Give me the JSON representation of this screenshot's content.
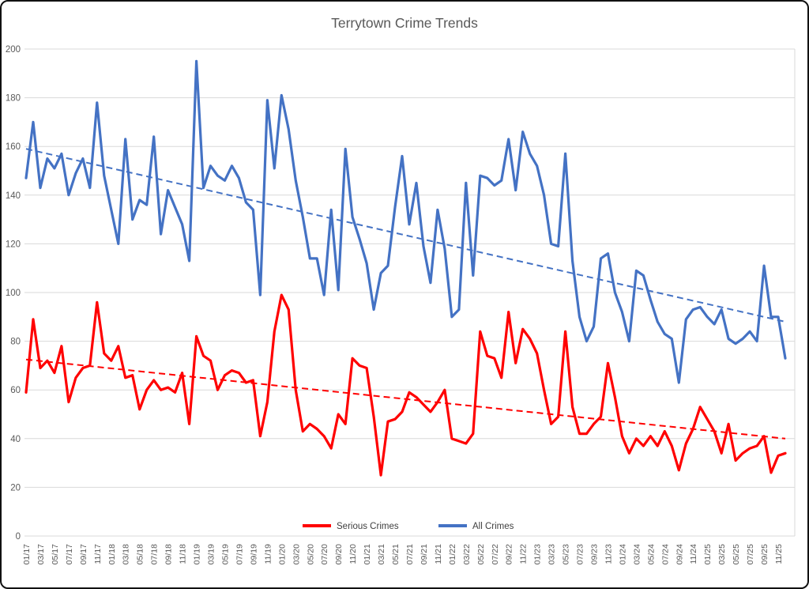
{
  "chart_data": {
    "type": "line",
    "title": "Terrytown Crime Trends",
    "title_color": "#595959",
    "axis_text_color": "#595959",
    "gridline_color": "#D9D9D9",
    "background": "#FFFFFF",
    "grid": true,
    "legend_position": "bottom",
    "ylim": [
      0,
      200
    ],
    "y_ticks": [
      0,
      20,
      40,
      60,
      80,
      100,
      120,
      140,
      160,
      180,
      200
    ],
    "x_tick_step": 2,
    "categories": [
      "01/17",
      "02/17",
      "03/17",
      "04/17",
      "05/17",
      "06/17",
      "07/17",
      "08/17",
      "09/17",
      "10/17",
      "11/17",
      "12/17",
      "01/18",
      "02/18",
      "03/18",
      "04/18",
      "05/18",
      "06/18",
      "07/18",
      "08/18",
      "09/18",
      "10/18",
      "11/18",
      "12/18",
      "01/19",
      "02/19",
      "03/19",
      "04/19",
      "05/19",
      "06/19",
      "07/19",
      "08/19",
      "09/19",
      "10/19",
      "11/19",
      "12/19",
      "01/20",
      "02/20",
      "03/20",
      "04/20",
      "05/20",
      "06/20",
      "07/20",
      "08/20",
      "09/20",
      "10/20",
      "11/20",
      "12/20",
      "01/21",
      "02/21",
      "03/21",
      "04/21",
      "05/21",
      "06/21",
      "07/21",
      "08/21",
      "09/21",
      "10/21",
      "11/21",
      "12/21",
      "01/22",
      "02/22",
      "03/22",
      "04/22",
      "05/22",
      "06/22",
      "07/22",
      "08/22",
      "09/22",
      "10/22",
      "11/22",
      "12/22",
      "01/23",
      "02/23",
      "03/23",
      "04/23",
      "05/23",
      "06/23",
      "07/23",
      "08/23",
      "09/23",
      "10/23",
      "11/23",
      "12/23",
      "01/24",
      "02/24",
      "03/24",
      "04/24",
      "05/24",
      "06/24",
      "07/24",
      "08/24",
      "09/24",
      "10/24",
      "11/24",
      "12/24",
      "01/25",
      "02/25",
      "03/25",
      "04/25",
      "05/25",
      "06/25",
      "07/25",
      "08/25",
      "09/25",
      "10/25",
      "11/25",
      "12/25"
    ],
    "series": [
      {
        "name": "Serious Crimes",
        "color": "#FF0000",
        "values": [
          59,
          89,
          69,
          72,
          67,
          78,
          55,
          65,
          69,
          70,
          96,
          75,
          72,
          78,
          65,
          66,
          52,
          60,
          64,
          60,
          61,
          59,
          67,
          46,
          82,
          74,
          72,
          60,
          66,
          68,
          67,
          63,
          64,
          41,
          55,
          84,
          99,
          93,
          60,
          43,
          46,
          44,
          41,
          36,
          50,
          46,
          73,
          70,
          69,
          49,
          25,
          47,
          48,
          51,
          59,
          57,
          54,
          51,
          55,
          60,
          40,
          39,
          38,
          42,
          84,
          74,
          73,
          65,
          92,
          71,
          85,
          81,
          75,
          60,
          46,
          49,
          84,
          53,
          42,
          42,
          46,
          49,
          71,
          57,
          41,
          34,
          40,
          37,
          41,
          37,
          43,
          37,
          27,
          38,
          44,
          53,
          48,
          43,
          34,
          46,
          31,
          34,
          36,
          37,
          41,
          26,
          33,
          34
        ],
        "trendline": {
          "style": "dashed",
          "start_value": 72.5,
          "end_value": 40
        }
      },
      {
        "name": "All Crimes",
        "color": "#4472C4",
        "values": [
          147,
          170,
          143,
          155,
          151,
          157,
          140,
          149,
          155,
          143,
          178,
          148,
          134,
          120,
          163,
          130,
          138,
          136,
          164,
          124,
          142,
          135,
          128,
          113,
          195,
          143,
          152,
          148,
          146,
          152,
          147,
          137,
          134,
          99,
          179,
          151,
          181,
          167,
          146,
          131,
          114,
          114,
          99,
          134,
          101,
          159,
          131,
          122,
          112,
          93,
          108,
          111,
          135,
          156,
          128,
          145,
          119,
          104,
          134,
          118,
          90,
          93,
          145,
          107,
          148,
          147,
          144,
          146,
          163,
          142,
          166,
          157,
          152,
          140,
          120,
          119,
          157,
          113,
          90,
          80,
          86,
          114,
          116,
          100,
          92,
          80,
          109,
          107,
          97,
          88,
          83,
          81,
          63,
          89,
          93,
          94,
          90,
          87,
          93,
          81,
          79,
          81,
          84,
          80,
          111,
          90,
          90,
          73
        ],
        "trendline": {
          "style": "dashed",
          "start_value": 159,
          "end_value": 88
        }
      }
    ]
  }
}
